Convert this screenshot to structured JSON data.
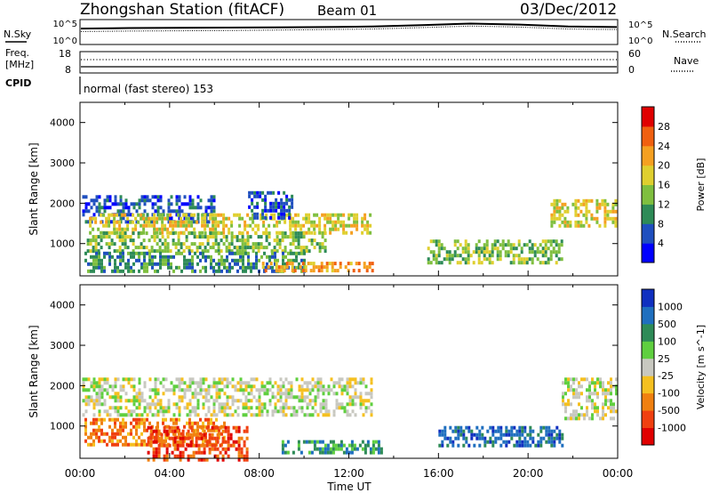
{
  "header": {
    "title": "Zhongshan Station (fitACF)",
    "beam": "Beam 01",
    "date": "03/Dec/2012"
  },
  "status_panels": {
    "nsky_label": "N.Sky",
    "nsearch_label": "N.Search",
    "freq_label_line1": "Freq.",
    "freq_label_line2": "[MHz]",
    "nave_label": "Nave",
    "cpid_label": "CPID",
    "cpid_value": "normal (fast stereo) 153",
    "noise_left_ticks": [
      "10^5",
      "10^0"
    ],
    "noise_right_ticks": [
      "10^5",
      "10^0"
    ],
    "freq_left_ticks": [
      "18",
      "8"
    ],
    "freq_right_ticks": [
      "60",
      "0"
    ]
  },
  "chart_data": [
    {
      "type": "heatmap",
      "ylabel": "Slant Range [km]",
      "xlabel": "Time UT",
      "x_ticks": [
        "00:00",
        "04:00",
        "08:00",
        "12:00",
        "16:00",
        "20:00",
        "00:00"
      ],
      "y_ticks": [
        1000,
        2000,
        3000,
        4000
      ],
      "ylim": [
        200,
        4500
      ],
      "xlim_hours": [
        0,
        24
      ],
      "colorbar": {
        "label": "Power [dB]",
        "ticks": [
          "4",
          "8",
          "12",
          "16",
          "20",
          "24",
          "28"
        ],
        "colors": [
          "#0000ff",
          "#1f4fbf",
          "#2e8b57",
          "#7fbf3f",
          "#dfcf2f",
          "#f5a021",
          "#f06010",
          "#e00000"
        ]
      },
      "regions": [
        {
          "t0": 0.1,
          "t1": 6.0,
          "r0": 1500,
          "r1": 2200,
          "level": 1
        },
        {
          "t0": 0.4,
          "t1": 13.0,
          "r0": 1300,
          "r1": 1750,
          "level": 4
        },
        {
          "t0": 0.3,
          "t1": 11.0,
          "r0": 800,
          "r1": 1300,
          "level": 3
        },
        {
          "t0": 0.2,
          "t1": 10.0,
          "r0": 300,
          "r1": 800,
          "level": 2
        },
        {
          "t0": 7.5,
          "t1": 9.5,
          "r0": 1600,
          "r1": 2300,
          "level": 1
        },
        {
          "t0": 8.0,
          "t1": 13.0,
          "r0": 350,
          "r1": 550,
          "level": 5
        },
        {
          "t0": 15.5,
          "t1": 21.5,
          "r0": 500,
          "r1": 1100,
          "level": 3
        },
        {
          "t0": 21.0,
          "t1": 23.9,
          "r0": 1400,
          "r1": 2100,
          "level": 4
        }
      ]
    },
    {
      "type": "heatmap",
      "ylabel": "Slant Range [km]",
      "xlabel": "Time UT",
      "x_ticks": [
        "00:00",
        "04:00",
        "08:00",
        "12:00",
        "16:00",
        "20:00",
        "00:00"
      ],
      "y_ticks": [
        1000,
        2000,
        3000,
        4000
      ],
      "ylim": [
        200,
        4500
      ],
      "xlim_hours": [
        0,
        24
      ],
      "colorbar": {
        "label": "Velocity [m s^-1]",
        "ticks": [
          "1000",
          "500",
          "100",
          "25",
          "-25",
          "-100",
          "-500",
          "-1000"
        ],
        "colors": [
          "#1030c0",
          "#1f6fbf",
          "#2e8b57",
          "#5fcf3f",
          "#c8c8c0",
          "#f5c020",
          "#f08010",
          "#f04010",
          "#e00000"
        ]
      },
      "regions": [
        {
          "t0": 0.1,
          "t1": 13.0,
          "r0": 1300,
          "r1": 2200,
          "level": 4
        },
        {
          "t0": 0.2,
          "t1": 6.5,
          "r0": 500,
          "r1": 1200,
          "level": 6
        },
        {
          "t0": 3.0,
          "t1": 7.5,
          "r0": 200,
          "r1": 1000,
          "level": 7
        },
        {
          "t0": 9.0,
          "t1": 13.5,
          "r0": 350,
          "r1": 650,
          "level": 2
        },
        {
          "t0": 16.0,
          "t1": 21.5,
          "r0": 500,
          "r1": 1000,
          "level": 1
        },
        {
          "t0": 21.5,
          "t1": 23.9,
          "r0": 1200,
          "r1": 2200,
          "level": 4
        }
      ]
    }
  ],
  "noise_series": {
    "sky_level": [
      3.2,
      3.3,
      3.35,
      3.4,
      3.45,
      3.5,
      3.6,
      3.9,
      4.2,
      4.0,
      3.6,
      3.5
    ],
    "search_level": [
      2.6,
      2.7,
      2.75,
      2.8,
      2.9,
      3.0,
      3.1,
      3.4,
      3.7,
      3.5,
      3.1,
      3.0
    ]
  }
}
